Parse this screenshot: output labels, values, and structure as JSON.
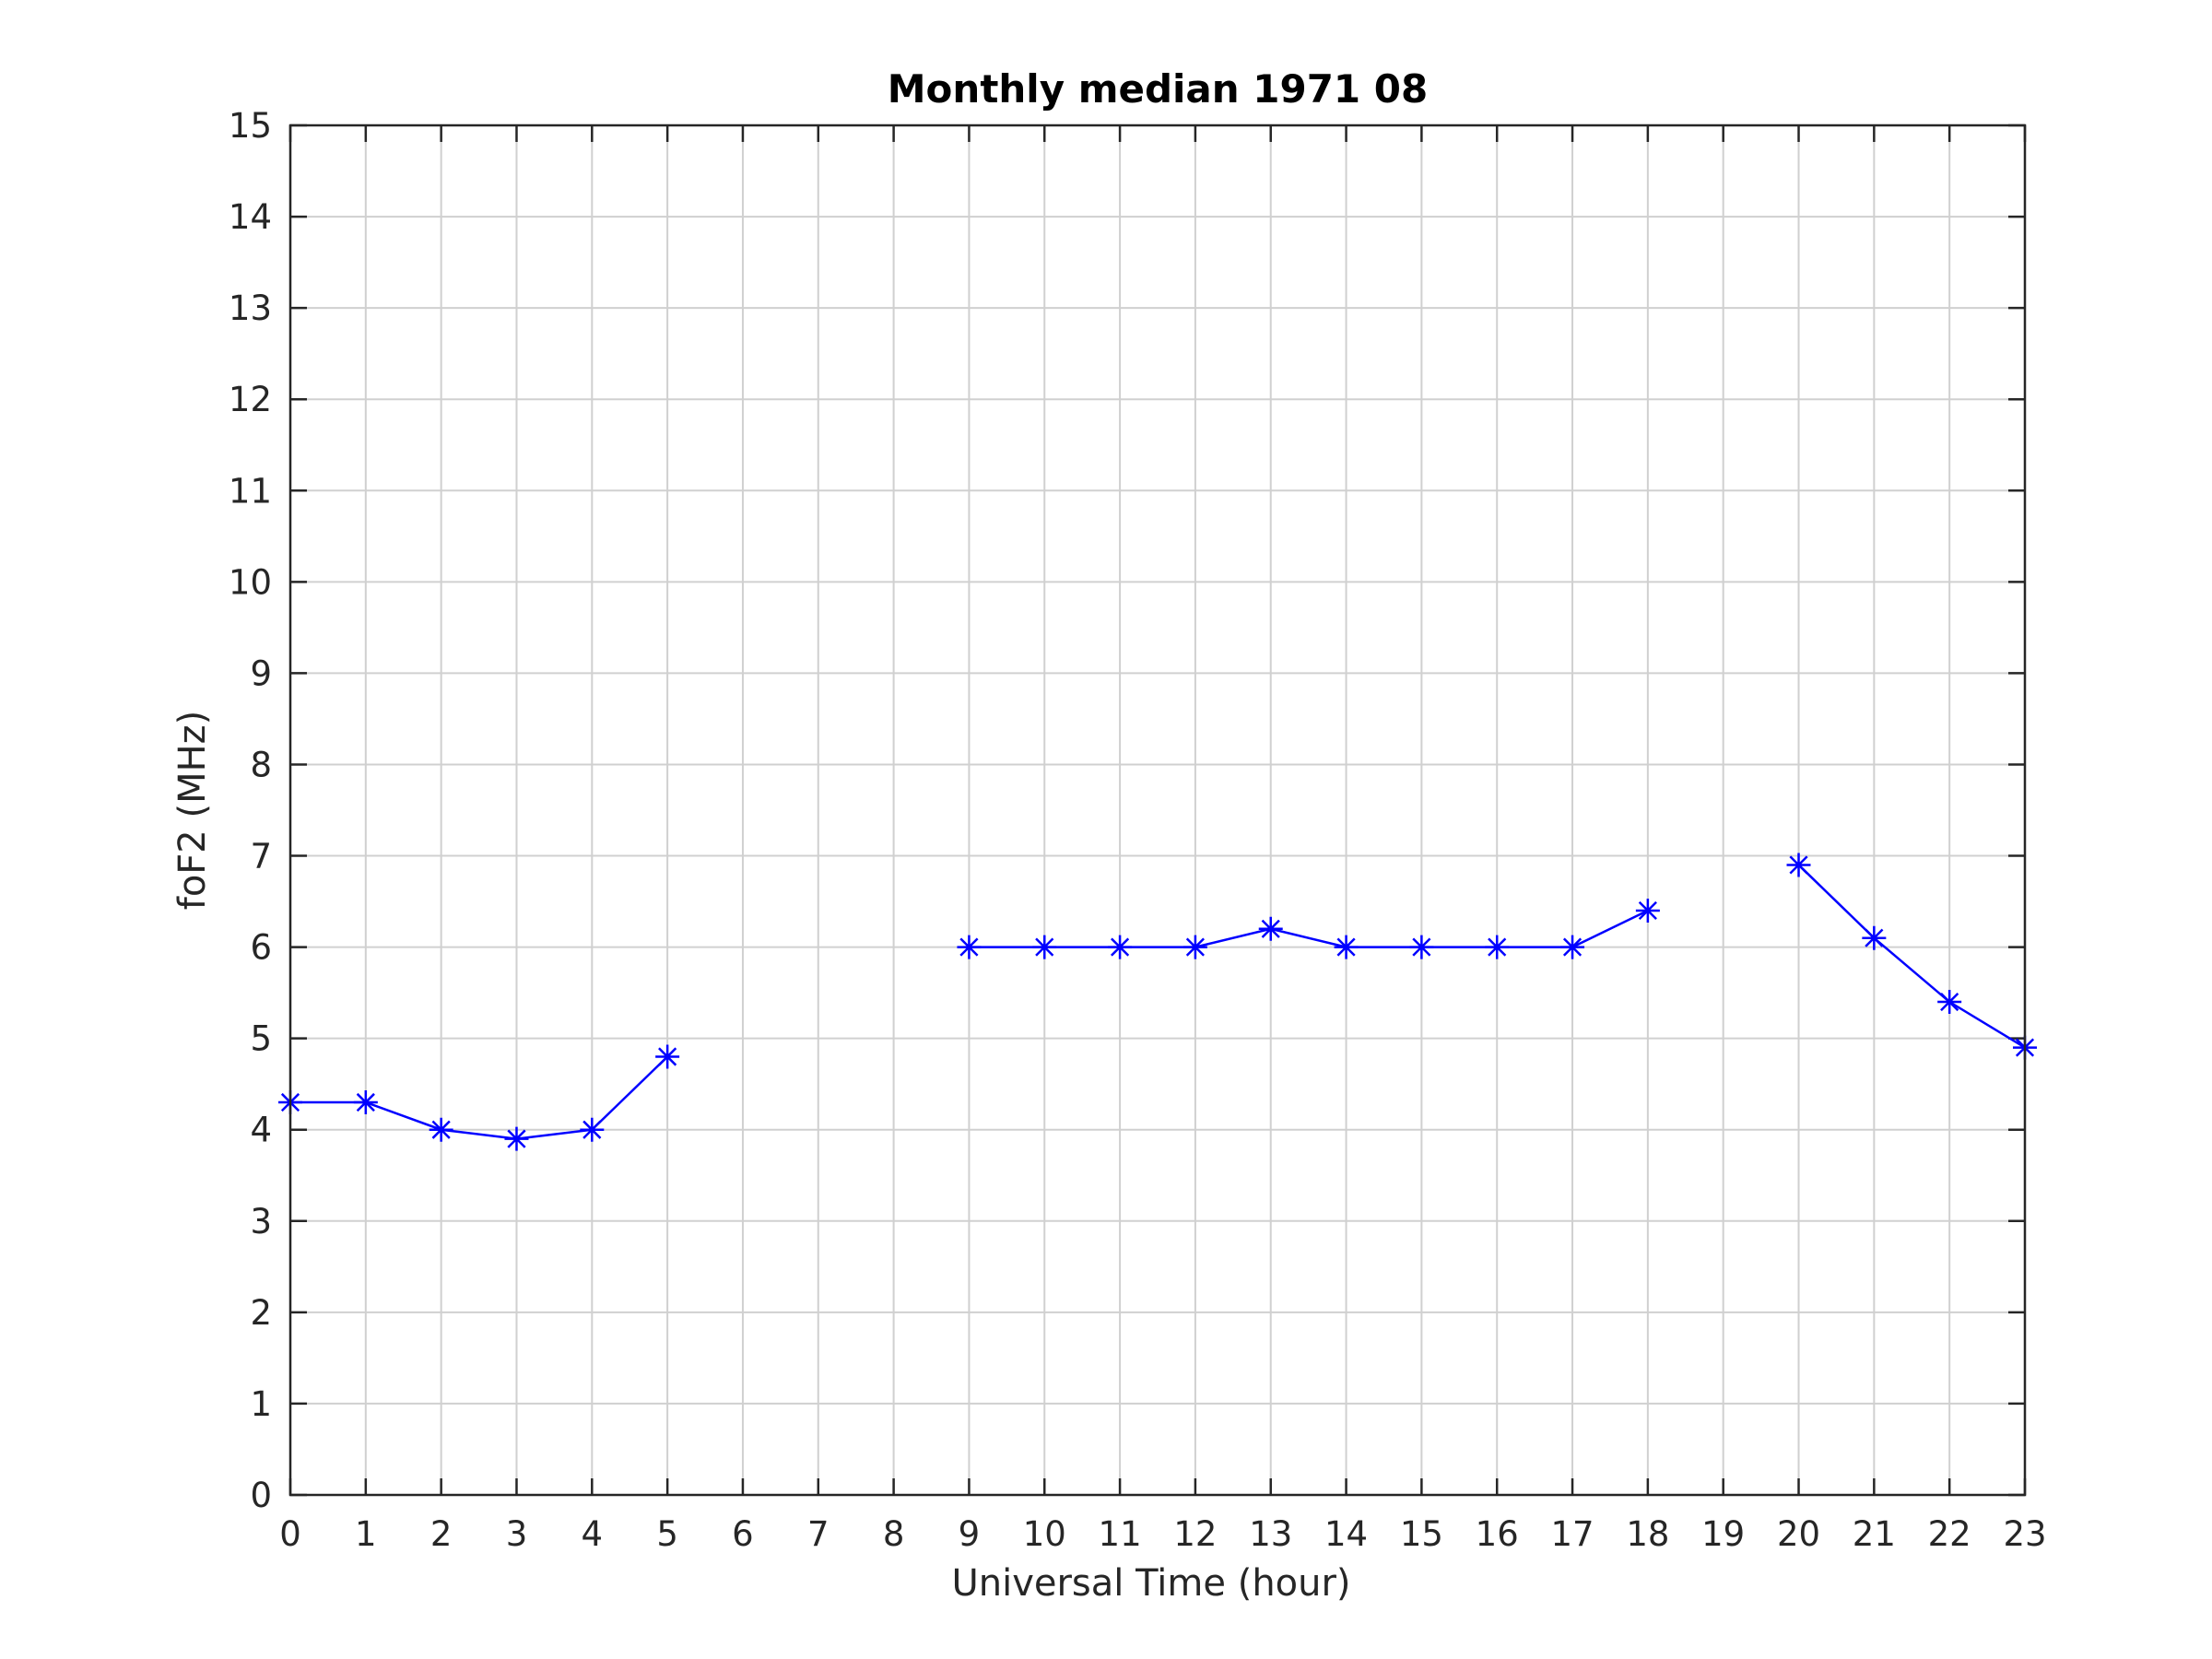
{
  "chart_data": {
    "type": "line",
    "title": "Monthly median 1971 08",
    "xlabel": "Universal Time (hour)",
    "ylabel": "foF2 (MHz)",
    "xlim": [
      0,
      23
    ],
    "ylim": [
      0,
      15
    ],
    "xticks": [
      0,
      1,
      2,
      3,
      4,
      5,
      6,
      7,
      8,
      9,
      10,
      11,
      12,
      13,
      14,
      15,
      16,
      17,
      18,
      19,
      20,
      21,
      22,
      23
    ],
    "yticks": [
      0,
      1,
      2,
      3,
      4,
      5,
      6,
      7,
      8,
      9,
      10,
      11,
      12,
      13,
      14,
      15
    ],
    "grid": true,
    "marker": "asterisk",
    "series": [
      {
        "color": "#0000ff",
        "x": [
          0,
          1,
          2,
          3,
          4,
          5,
          6,
          7,
          8,
          9,
          10,
          11,
          12,
          13,
          14,
          15,
          16,
          17,
          18,
          19,
          20,
          21,
          22,
          23
        ],
        "y": [
          4.3,
          4.3,
          4.0,
          3.9,
          4.0,
          4.8,
          null,
          null,
          null,
          6.0,
          6.0,
          6.0,
          6.0,
          6.2,
          6.0,
          6.0,
          6.0,
          6.0,
          6.4,
          null,
          6.9,
          6.1,
          5.4,
          4.9
        ]
      }
    ]
  }
}
